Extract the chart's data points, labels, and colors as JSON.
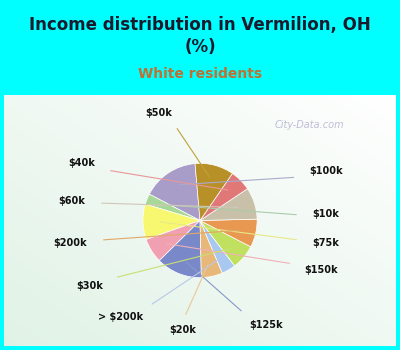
{
  "title": "Income distribution in Vermilion, OH\n(%)",
  "subtitle": "White residents",
  "watermark": "City-Data.com",
  "labels": [
    "$100k",
    "$10k",
    "$75k",
    "$150k",
    "$125k",
    "$20k",
    "> $200k",
    "$30k",
    "$200k",
    "$60k",
    "$40k",
    "$50k"
  ],
  "values": [
    16,
    3,
    10,
    7,
    13,
    6,
    4,
    7,
    8,
    9,
    6,
    11
  ],
  "colors": [
    "#a89cc8",
    "#a8d898",
    "#f8f870",
    "#f0a0b0",
    "#7888c8",
    "#e8b878",
    "#a8c8f0",
    "#c0e060",
    "#e89850",
    "#c8c0a8",
    "#e07878",
    "#b89028"
  ],
  "bg_top": "#00ffff",
  "bg_chart_gradient_start": "#e8f8f0",
  "bg_chart_gradient_end": "#f8fdf8",
  "title_color": "#1a1a2e",
  "subtitle_color": "#c07030",
  "label_color": "#111111",
  "watermark_color": "#aaaacc",
  "startangle": 95,
  "pct_distance": 0.55,
  "label_distance": 1.28
}
